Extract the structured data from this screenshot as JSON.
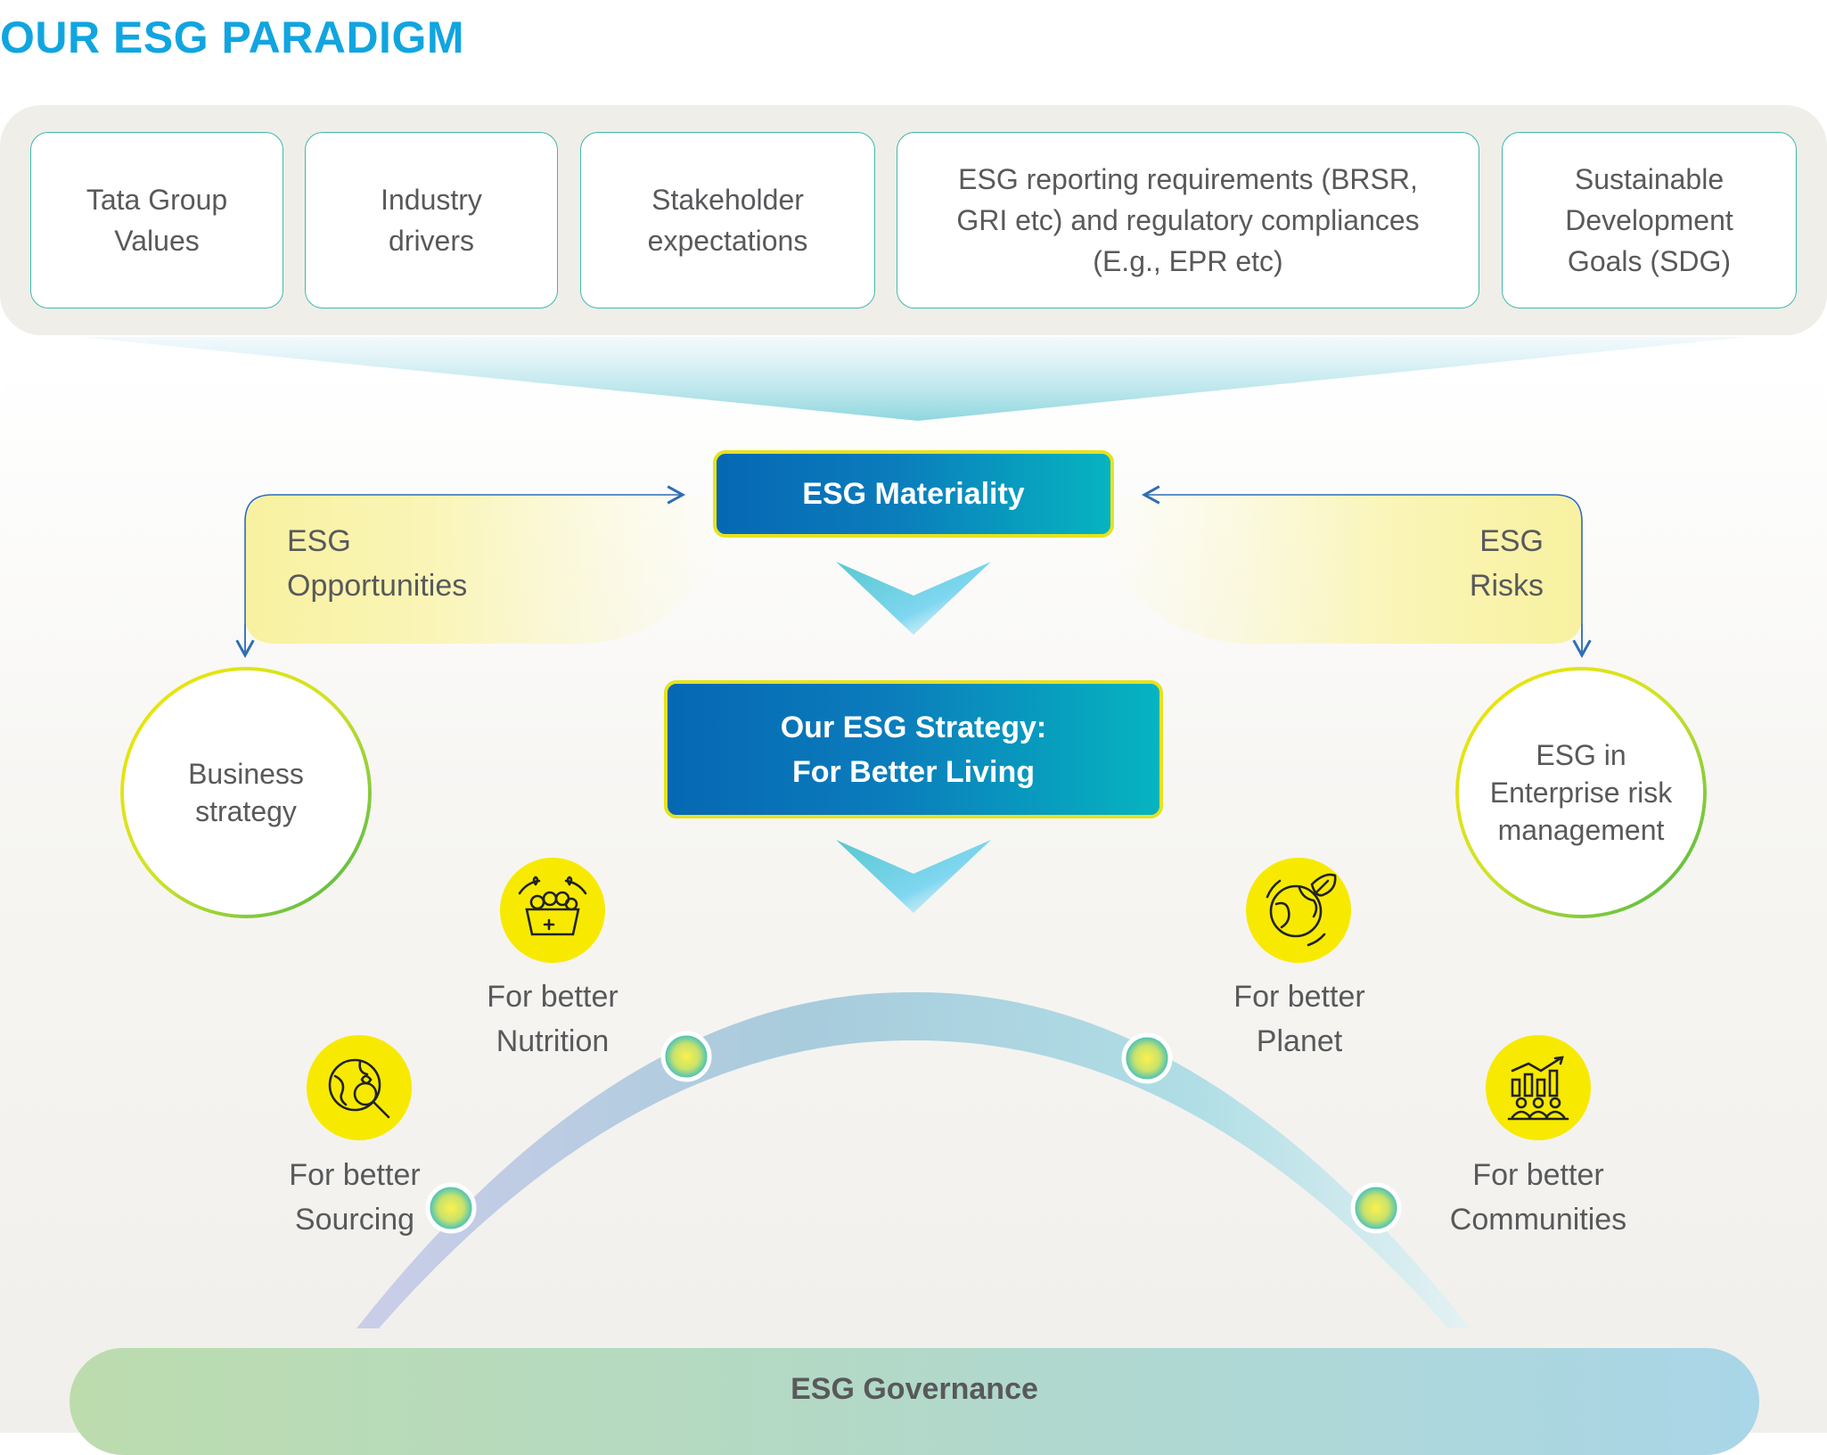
{
  "title": "OUR ESG PARADIGM",
  "inputs": [
    {
      "id": "tata",
      "label": "Tata Group Values"
    },
    {
      "id": "industry",
      "label": "Industry drivers"
    },
    {
      "id": "stakeholder",
      "label": "Stakeholder expectations"
    },
    {
      "id": "reporting",
      "label": "ESG reporting requirements (BRSR, GRI etc) and regulatory compliances (E.g., EPR etc)"
    },
    {
      "id": "sdg",
      "label": "Sustainable Development Goals (SDG)"
    }
  ],
  "materiality": "ESG Materiality",
  "opportunities": {
    "line1": "ESG",
    "line2": "Opportunities"
  },
  "risks": {
    "line1": "ESG",
    "line2": "Risks"
  },
  "strategy": {
    "line1": "Our ESG Strategy:",
    "line2": "For Better Living"
  },
  "business_strategy": {
    "line1": "Business",
    "line2": "strategy"
  },
  "erm": {
    "line1": "ESG in",
    "line2": "Enterprise risk",
    "line3": "management"
  },
  "pillars": [
    {
      "line1": "For better",
      "line2": "Sourcing",
      "icon": "sourcing-globe-magnifier-icon"
    },
    {
      "line1": "For better",
      "line2": "Nutrition",
      "icon": "nutrition-basket-icon"
    },
    {
      "line1": "For better",
      "line2": "Planet",
      "icon": "planet-earth-leaf-icon"
    },
    {
      "line1": "For better",
      "line2": "Communities",
      "icon": "communities-growth-icon"
    }
  ],
  "governance": "ESG Governance",
  "colors": {
    "title": "#11a5e0",
    "accent_yellow": "#f7ea00",
    "gradient_start": "#0668b3",
    "gradient_end": "#06b4c0",
    "box_border": "#3fb9a8"
  }
}
